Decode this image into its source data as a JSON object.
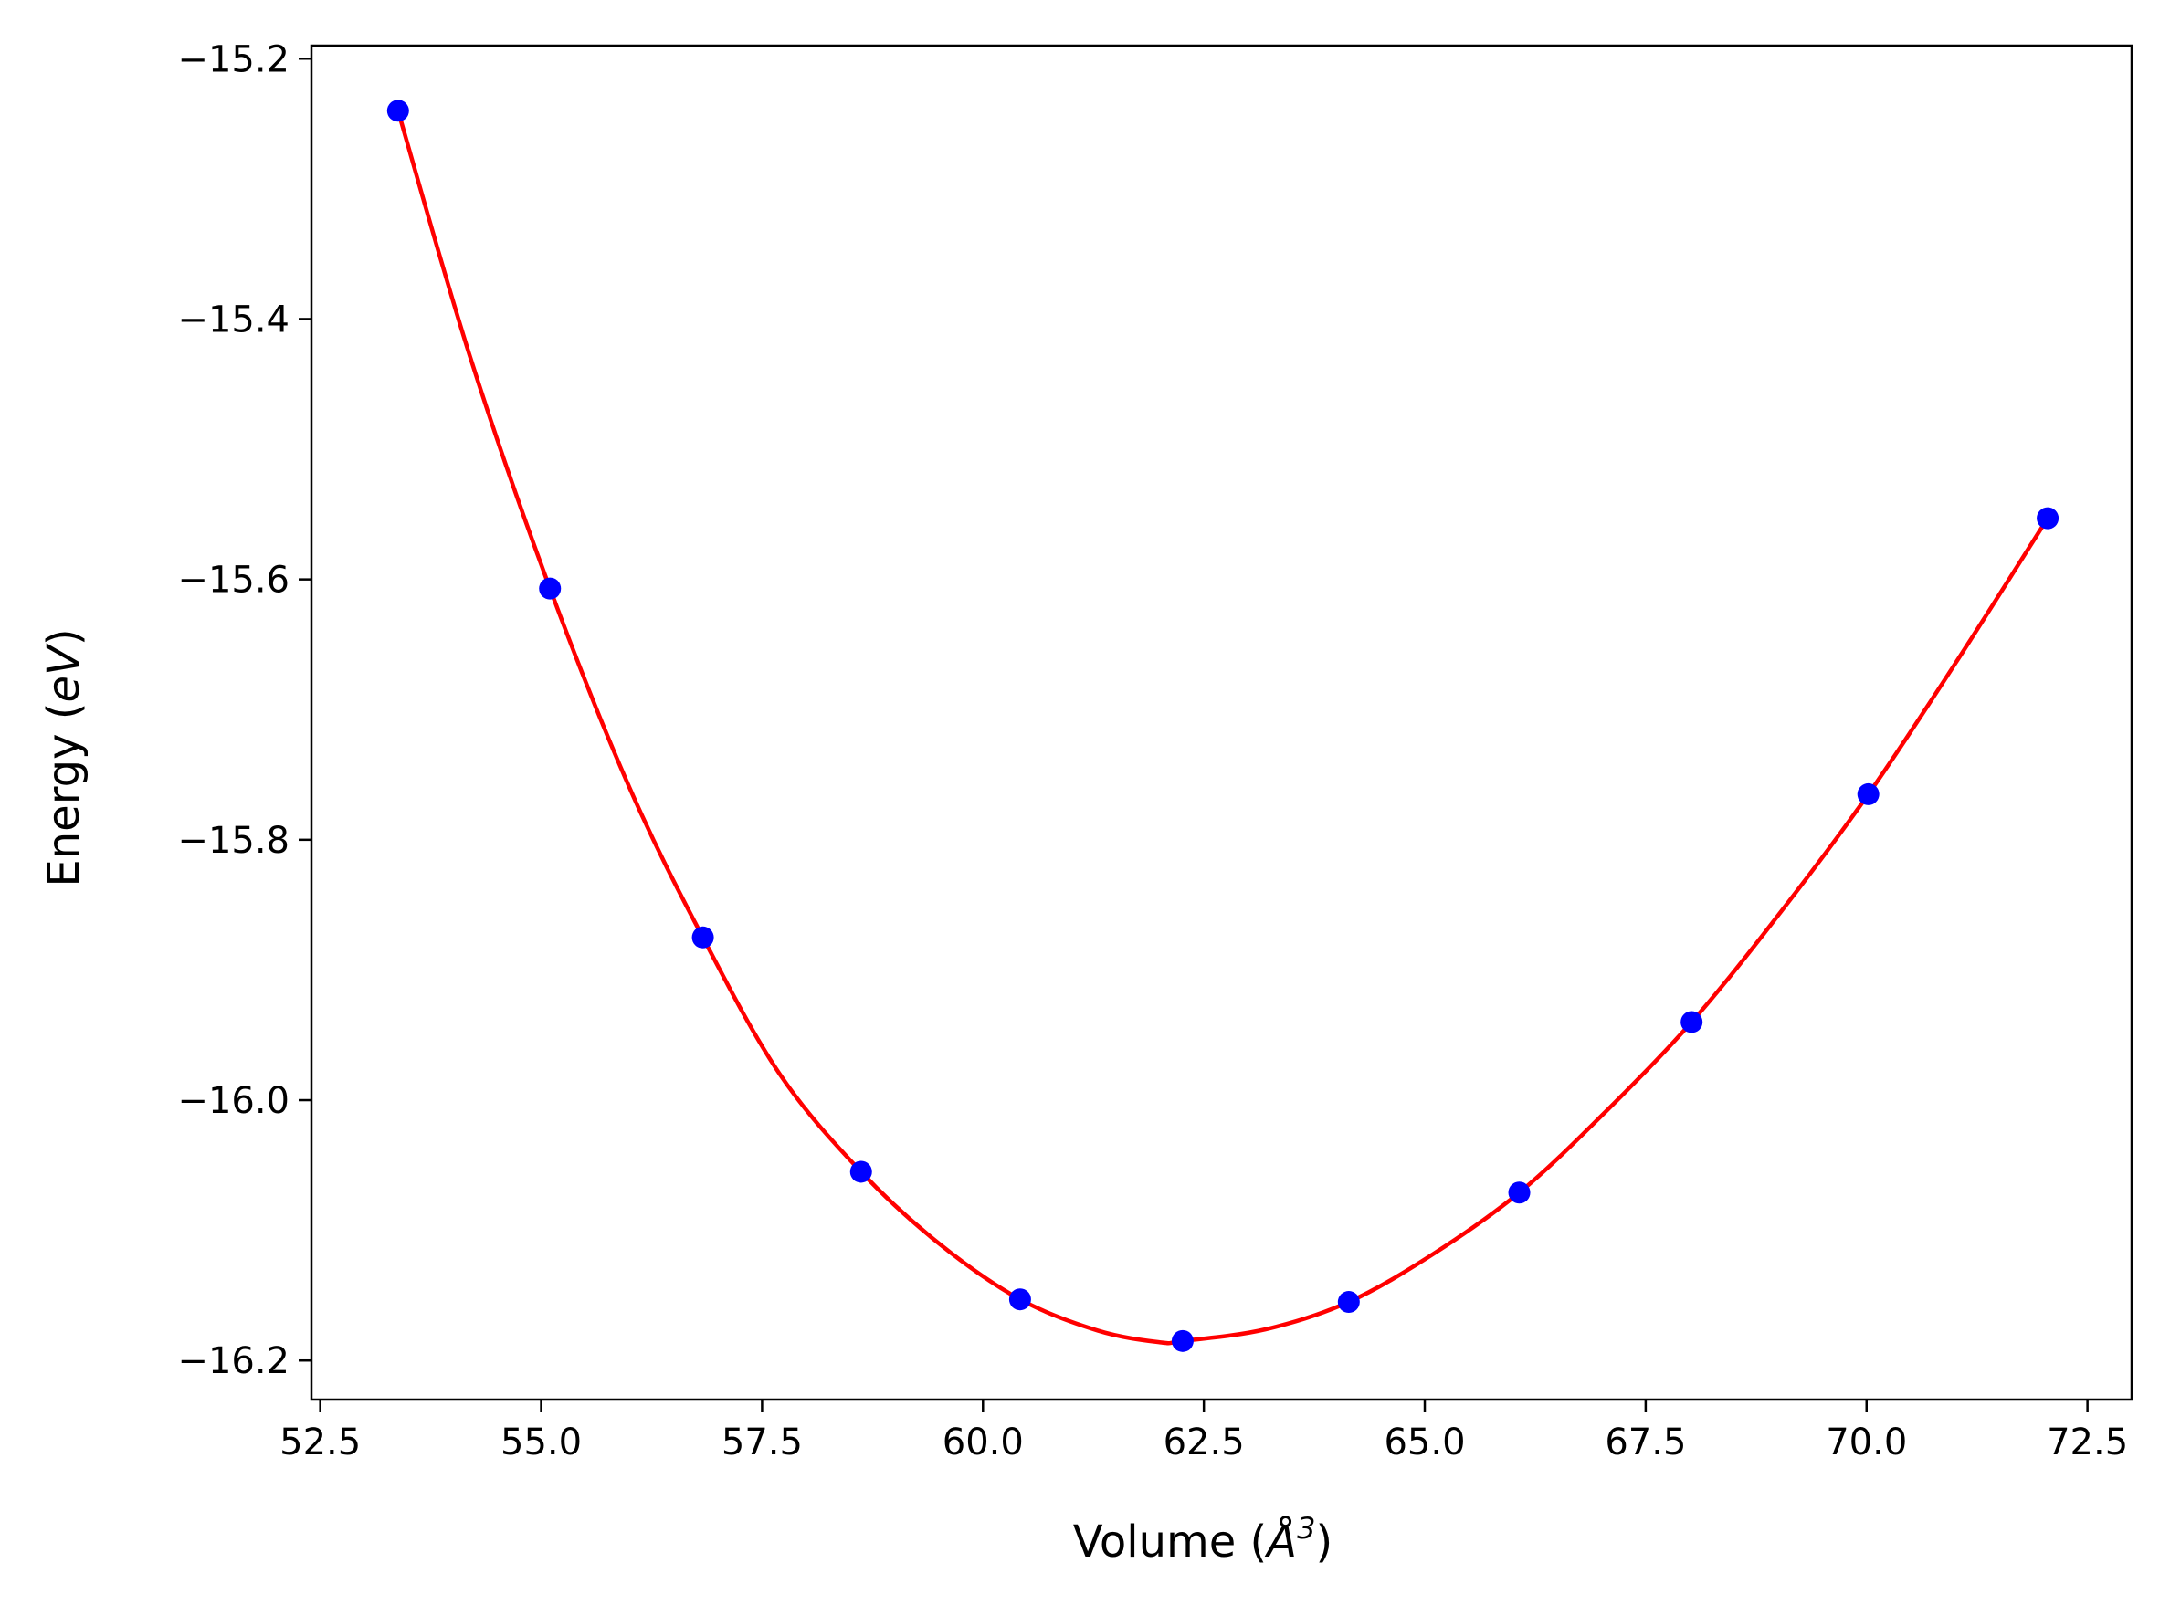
{
  "chart_data": {
    "type": "scatter",
    "title": "",
    "xlabel_main": "Volume (",
    "xlabel_symbol": "Å",
    "xlabel_exp": "3",
    "xlabel_close": ")",
    "ylabel_main": "Energy (",
    "ylabel_unit": "eV",
    "ylabel_close": ")",
    "xlim": [
      52.4,
      73.0
    ],
    "ylim": [
      -16.23,
      -15.19
    ],
    "x_ticks": [
      52.5,
      55.0,
      57.5,
      60.0,
      62.5,
      65.0,
      67.5,
      70.0,
      72.5
    ],
    "x_tick_labels": [
      "52.5",
      "55.0",
      "57.5",
      "60.0",
      "62.5",
      "65.0",
      "67.5",
      "70.0",
      "72.5"
    ],
    "y_ticks": [
      -15.2,
      -15.4,
      -15.6,
      -15.8,
      -16.0,
      -16.2
    ],
    "y_tick_labels": [
      "−15.2",
      "−15.4",
      "−15.6",
      "−15.8",
      "−16.0",
      "−16.2"
    ],
    "grid": false,
    "colors": {
      "points": "#0000ff",
      "fit": "#ff0000",
      "axes": "#000000"
    },
    "series": [
      {
        "kind": "points",
        "x": [
          53.38,
          55.1,
          56.83,
          58.62,
          60.42,
          62.26,
          64.14,
          66.07,
          68.02,
          70.02,
          72.05
        ],
        "y": [
          -15.24,
          -15.607,
          -15.875,
          -16.055,
          -16.153,
          -16.185,
          -16.155,
          -16.071,
          -15.94,
          -15.765,
          -15.553
        ]
      },
      {
        "kind": "fit-curve",
        "x": [
          53.38,
          54.2,
          55.1,
          56.0,
          56.83,
          57.7,
          58.62,
          59.5,
          60.42,
          61.3,
          62.0,
          62.26,
          63.2,
          64.14,
          65.1,
          66.07,
          67.0,
          68.02,
          69.0,
          70.02,
          71.0,
          72.05
        ],
        "y": [
          -15.24,
          -15.43,
          -15.607,
          -15.76,
          -15.875,
          -15.98,
          -16.055,
          -16.11,
          -16.153,
          -16.177,
          -16.186,
          -16.185,
          -16.176,
          -16.155,
          -16.118,
          -16.071,
          -16.012,
          -15.94,
          -15.858,
          -15.765,
          -15.665,
          -15.553
        ]
      }
    ]
  }
}
